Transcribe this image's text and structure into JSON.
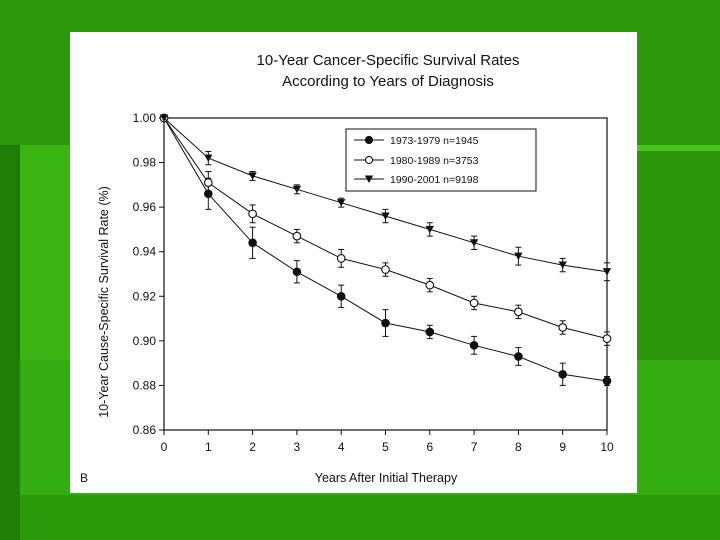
{
  "chart_data": {
    "type": "line",
    "title_lines": [
      "10-Year Cancer-Specific Survival Rates",
      "According to Years of Diagnosis"
    ],
    "xlabel": "Years After Initial Therapy",
    "ylabel": "10-Year Cause-Specific Survival Rate (%)",
    "panel_label": "B",
    "x": [
      0,
      1,
      2,
      3,
      4,
      5,
      6,
      7,
      8,
      9,
      10
    ],
    "xlim": [
      0,
      10
    ],
    "ylim": [
      0.86,
      1.0
    ],
    "x_ticks": [
      "0",
      "1",
      "2",
      "3",
      "4",
      "5",
      "6",
      "7",
      "8",
      "9",
      "10"
    ],
    "y_ticks": [
      "0.86",
      "0.88",
      "0.90",
      "0.92",
      "0.94",
      "0.96",
      "0.98",
      "1.00"
    ],
    "y_tick_values": [
      0.86,
      0.88,
      0.9,
      0.92,
      0.94,
      0.96,
      0.98,
      1.0
    ],
    "series": [
      {
        "name": "1973-1979 n=1945",
        "marker": "filled-circle",
        "values": [
          1.0,
          0.966,
          0.944,
          0.931,
          0.92,
          0.908,
          0.904,
          0.898,
          0.893,
          0.885,
          0.882
        ],
        "errors": [
          0,
          0.007,
          0.007,
          0.005,
          0.005,
          0.006,
          0.003,
          0.004,
          0.004,
          0.005,
          0.002
        ]
      },
      {
        "name": "1980-1989 n=3753",
        "marker": "open-circle",
        "values": [
          1.0,
          0.971,
          0.957,
          0.947,
          0.937,
          0.932,
          0.925,
          0.917,
          0.913,
          0.906,
          0.901
        ],
        "errors": [
          0,
          0.005,
          0.004,
          0.003,
          0.004,
          0.003,
          0.003,
          0.003,
          0.003,
          0.003,
          0.003
        ]
      },
      {
        "name": "1990-2001 n=9198",
        "marker": "filled-triangle-down",
        "values": [
          1.0,
          0.982,
          0.974,
          0.968,
          0.962,
          0.956,
          0.95,
          0.944,
          0.938,
          0.934,
          0.931
        ],
        "errors": [
          0,
          0.003,
          0.002,
          0.002,
          0.002,
          0.003,
          0.003,
          0.003,
          0.004,
          0.003,
          0.004
        ]
      }
    ],
    "legend_position": "top-right"
  }
}
